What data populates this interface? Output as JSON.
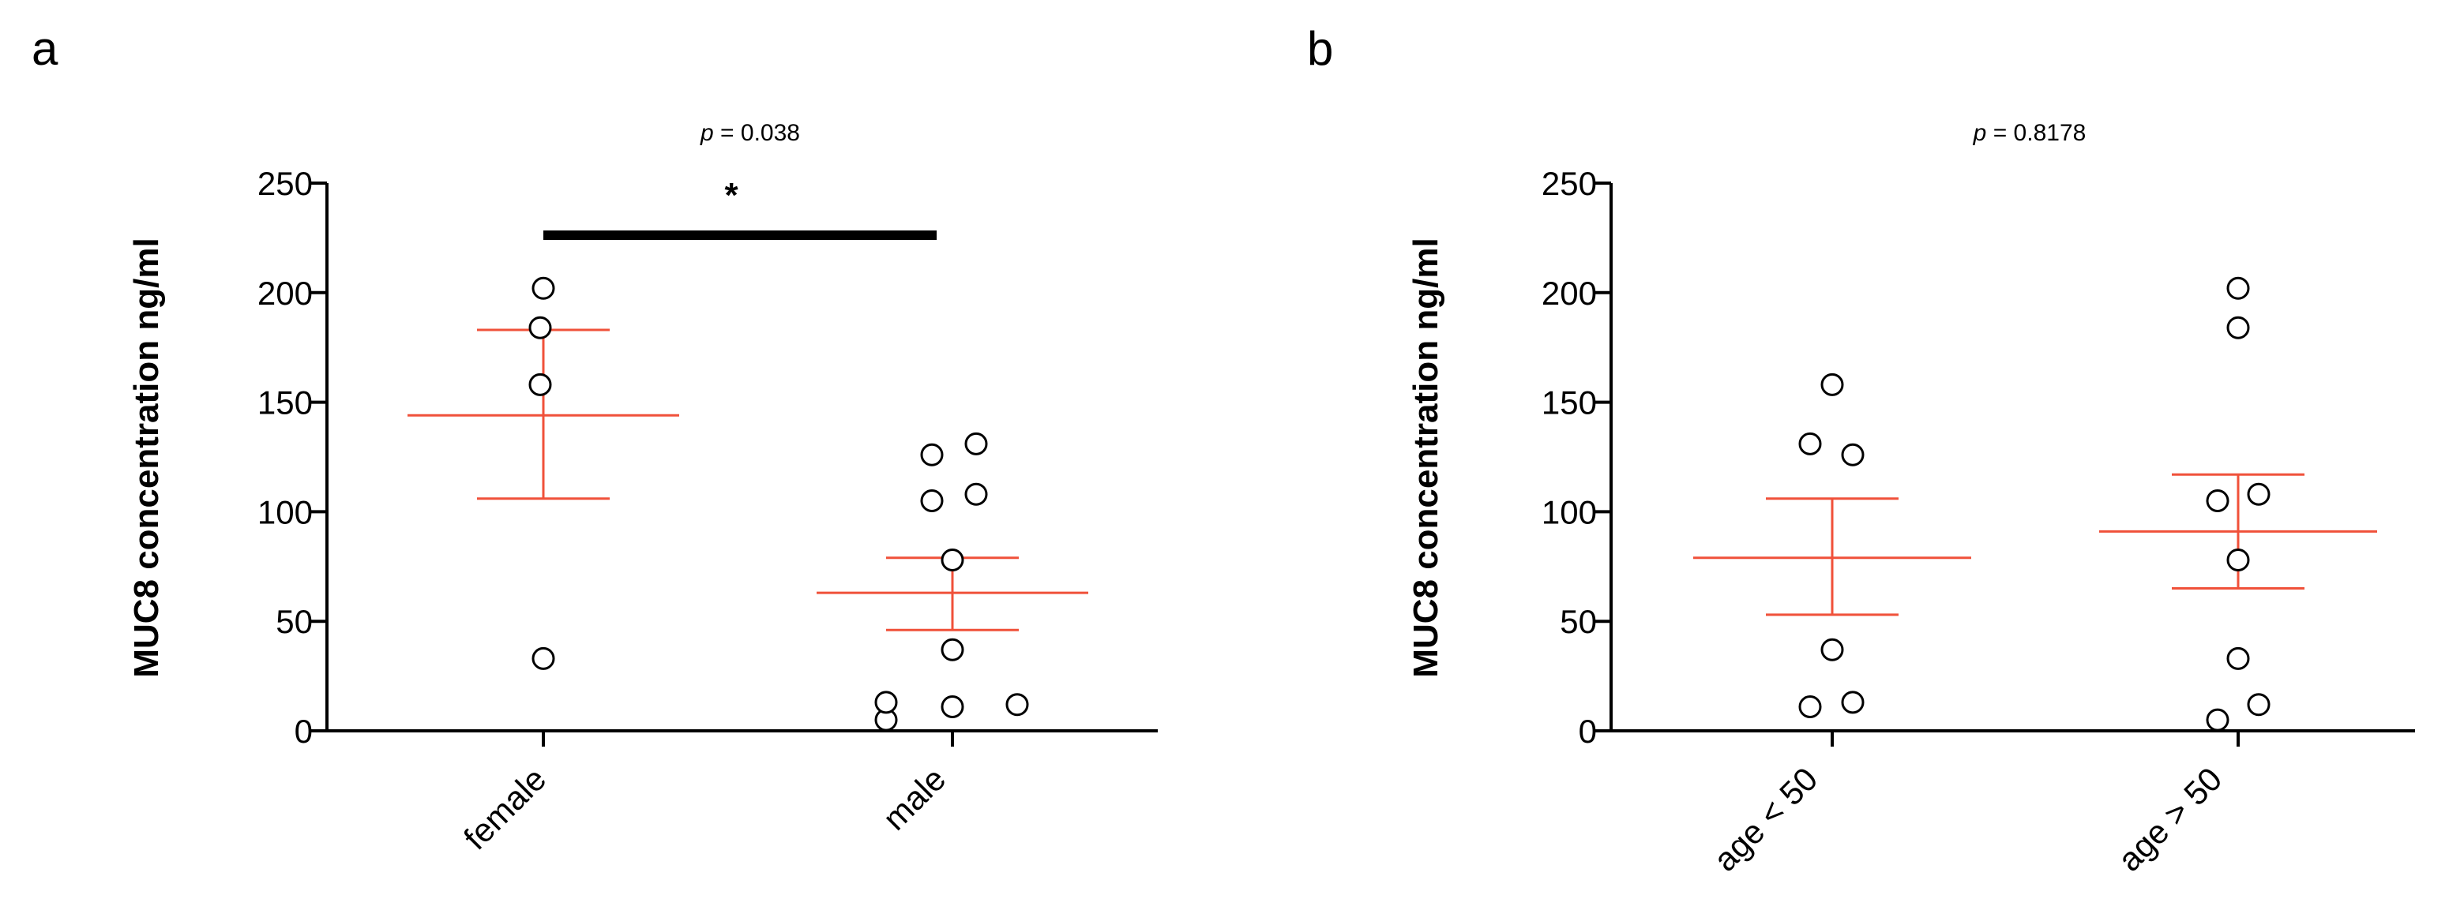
{
  "chart_data": [
    {
      "type": "scatter",
      "panel_label": "a",
      "annotation_prefix": "p",
      "annotation_value": " = 0.038",
      "significance_marker": "*",
      "ylabel": "MUC8 concentration ng/ml",
      "ylim": [
        0,
        250
      ],
      "yticks": [
        0,
        50,
        100,
        150,
        200,
        250
      ],
      "categories": [
        "female",
        "male"
      ],
      "groups": [
        {
          "name": "female",
          "points": [
            202,
            184,
            158,
            33
          ],
          "mean": 144,
          "sem_low": 106,
          "sem_high": 183
        },
        {
          "name": "male",
          "points": [
            5,
            13,
            11,
            12,
            126,
            131,
            105,
            108,
            78,
            37
          ],
          "mean": 63,
          "sem_low": 46,
          "sem_high": 79
        }
      ],
      "accent_color": "#f0513a"
    },
    {
      "type": "scatter",
      "panel_label": "b",
      "annotation_prefix": "p",
      "annotation_value": " = 0.8178",
      "ylabel": "MUC8 concentration ng/ml",
      "ylim": [
        0,
        250
      ],
      "yticks": [
        0,
        50,
        100,
        150,
        200,
        250
      ],
      "categories": [
        "age < 50",
        "age > 50"
      ],
      "groups": [
        {
          "name": "age < 50",
          "points": [
            158,
            131,
            126,
            37,
            11,
            13
          ],
          "mean": 79,
          "sem_low": 53,
          "sem_high": 106
        },
        {
          "name": "age > 50",
          "points": [
            202,
            184,
            105,
            108,
            78,
            33,
            5,
            12
          ],
          "mean": 91,
          "sem_low": 65,
          "sem_high": 117
        }
      ],
      "accent_color": "#f0513a"
    }
  ]
}
